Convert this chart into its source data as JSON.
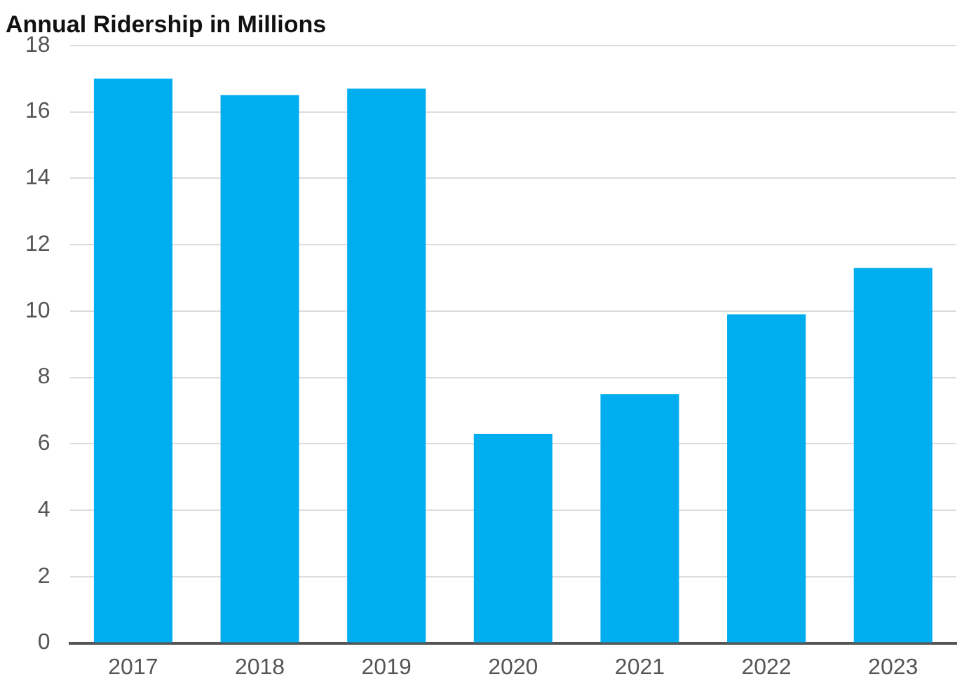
{
  "chart_data": {
    "type": "bar",
    "title": "Annual Ridership in Millions",
    "categories": [
      "2017",
      "2018",
      "2019",
      "2020",
      "2021",
      "2022",
      "2023"
    ],
    "values": [
      17.0,
      16.5,
      16.7,
      6.3,
      7.5,
      9.9,
      11.3
    ],
    "color": "#00aeef",
    "ylim": [
      0,
      18
    ],
    "yticks": [
      0,
      2,
      4,
      6,
      8,
      10,
      12,
      14,
      16,
      18
    ],
    "grid": "y",
    "legend": false
  }
}
